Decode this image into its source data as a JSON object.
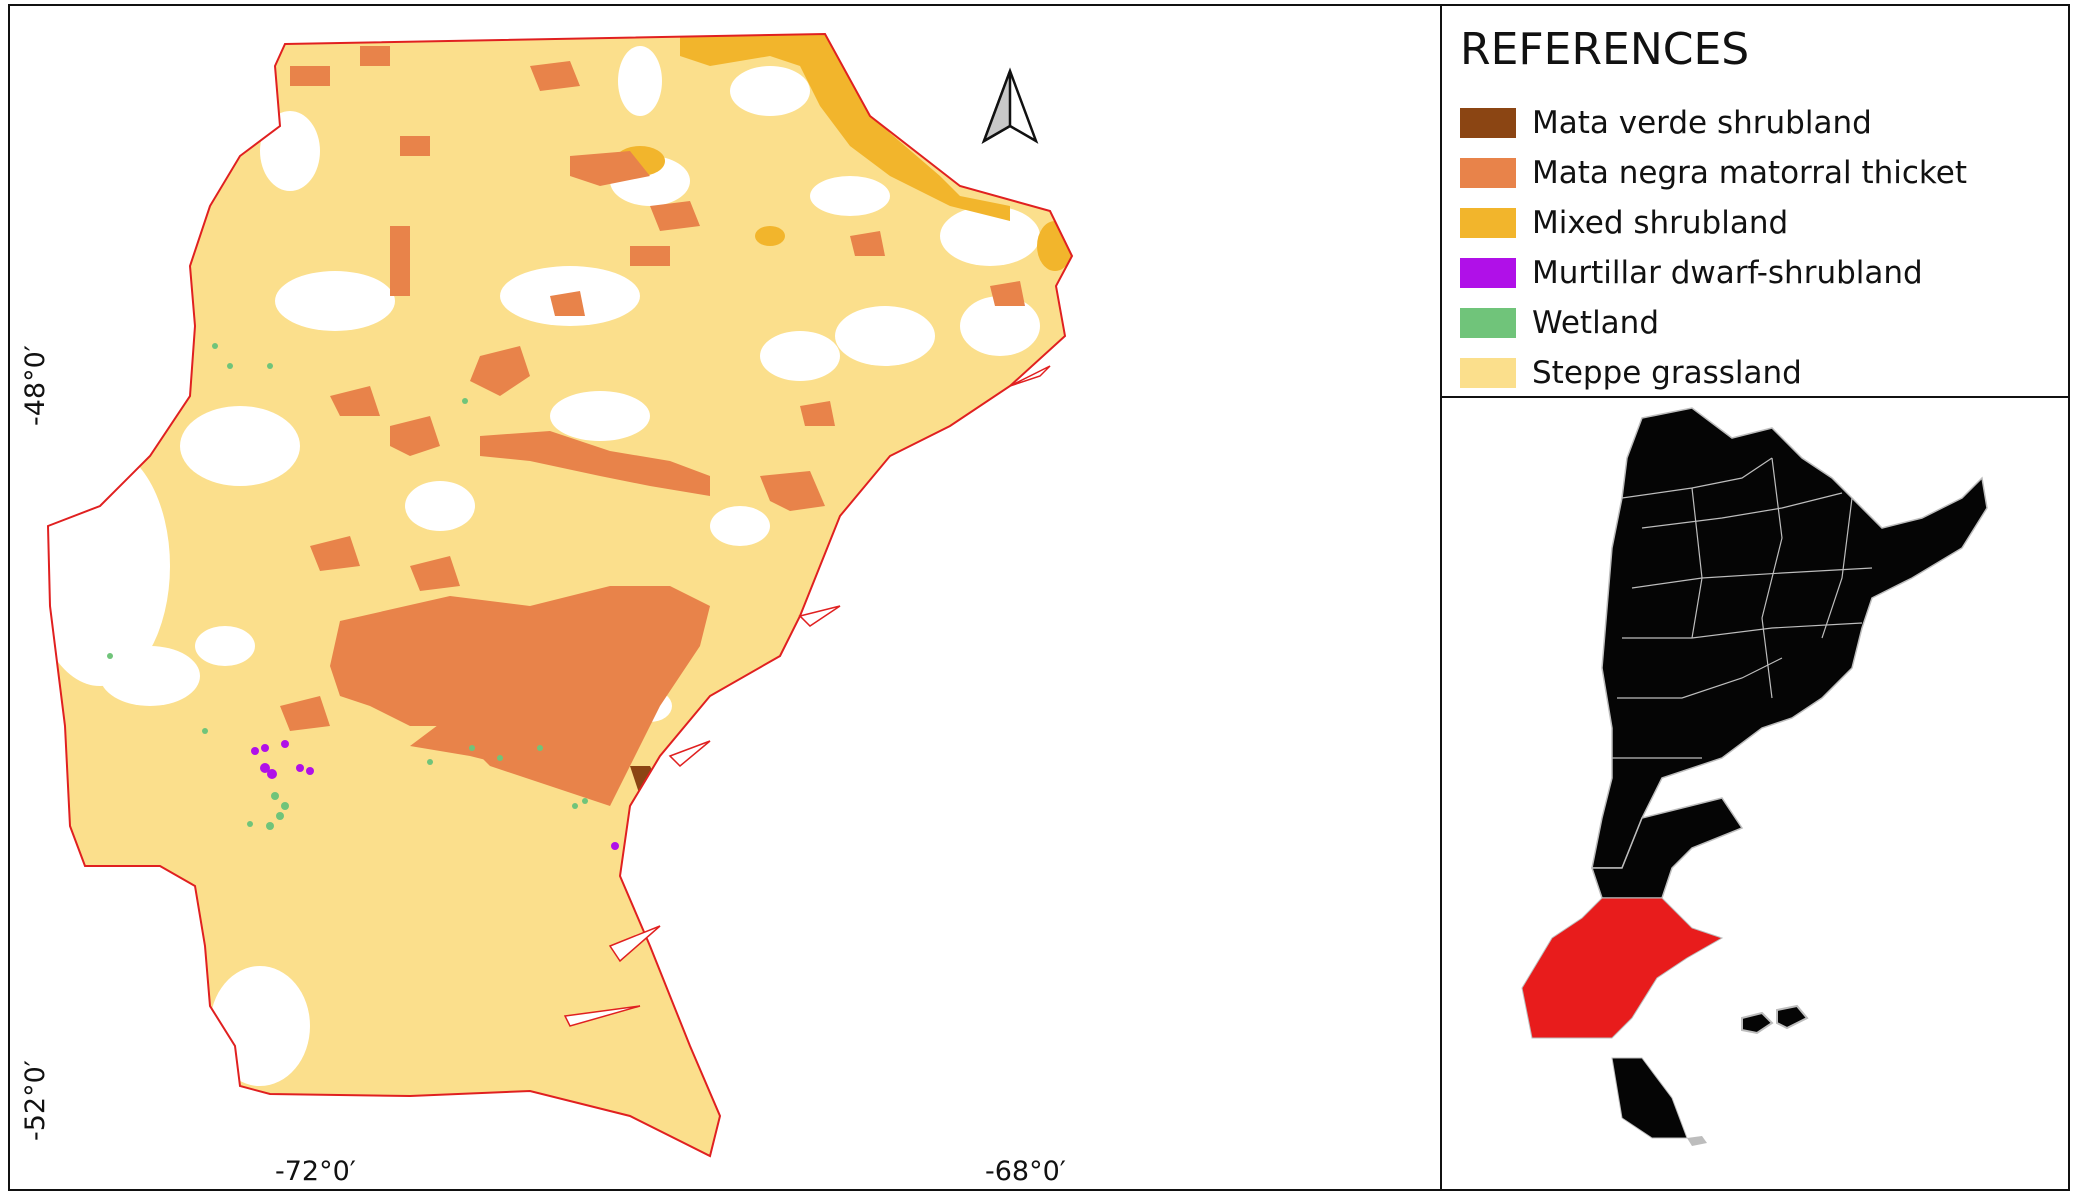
{
  "legend": {
    "title": "REFERENCES",
    "items": [
      {
        "label": "Mata verde shrubland",
        "color": "#8B4513"
      },
      {
        "label": "Mata negra matorral thicket",
        "color": "#E8834A"
      },
      {
        "label": "Mixed shrubland",
        "color": "#F2B52C"
      },
      {
        "label": "Murtillar dwarf-shrubland",
        "color": "#B010E8"
      },
      {
        "label": "Wetland",
        "color": "#70C47A"
      },
      {
        "label": "Steppe grassland",
        "color": "#FBDF8C"
      }
    ]
  },
  "coordinates": {
    "lat_labels": [
      "-48°0′",
      "-52°0′"
    ],
    "lon_labels": [
      "-72°0′",
      "-68°0′"
    ]
  },
  "colors": {
    "boundary": "#E02020",
    "highlight_province": "#E81C1C",
    "country_fill": "#050505",
    "province_lines": "#BDBDBD"
  },
  "icons": {
    "north_arrow": "north-arrow-icon"
  }
}
